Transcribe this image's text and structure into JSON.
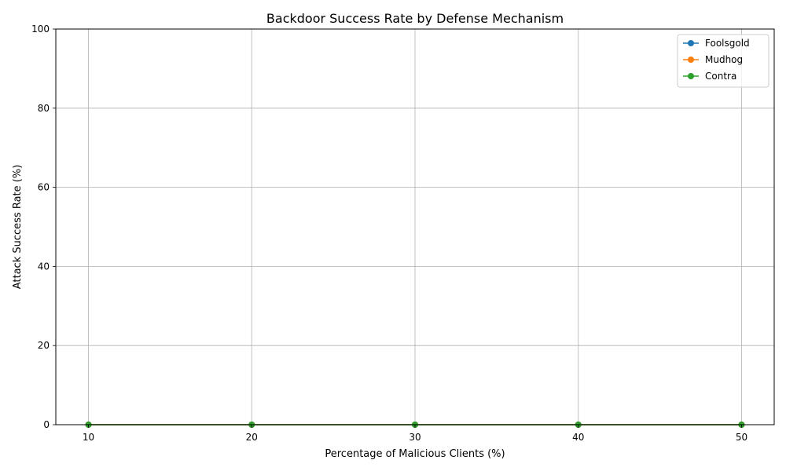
{
  "chart_data": {
    "type": "line",
    "title": "Backdoor Success Rate by Defense Mechanism",
    "xlabel": "Percentage of Malicious Clients (%)",
    "ylabel": "Attack Success Rate (%)",
    "x": [
      10,
      20,
      30,
      40,
      50
    ],
    "xlim": [
      8,
      52
    ],
    "ylim": [
      0,
      100
    ],
    "xticks": [
      "10",
      "20",
      "30",
      "40",
      "50"
    ],
    "yticks": [
      "0",
      "20",
      "40",
      "60",
      "80",
      "100"
    ],
    "grid": true,
    "legend_position": "top-right",
    "series": [
      {
        "name": "Foolsgold",
        "color": "#1f77b4",
        "values": [
          0,
          0,
          0,
          0,
          0
        ]
      },
      {
        "name": "Mudhog",
        "color": "#ff7f0e",
        "values": [
          0,
          0,
          0,
          0,
          0
        ]
      },
      {
        "name": "Contra",
        "color": "#2ca02c",
        "values": [
          0,
          0,
          0,
          0,
          0
        ]
      }
    ]
  }
}
